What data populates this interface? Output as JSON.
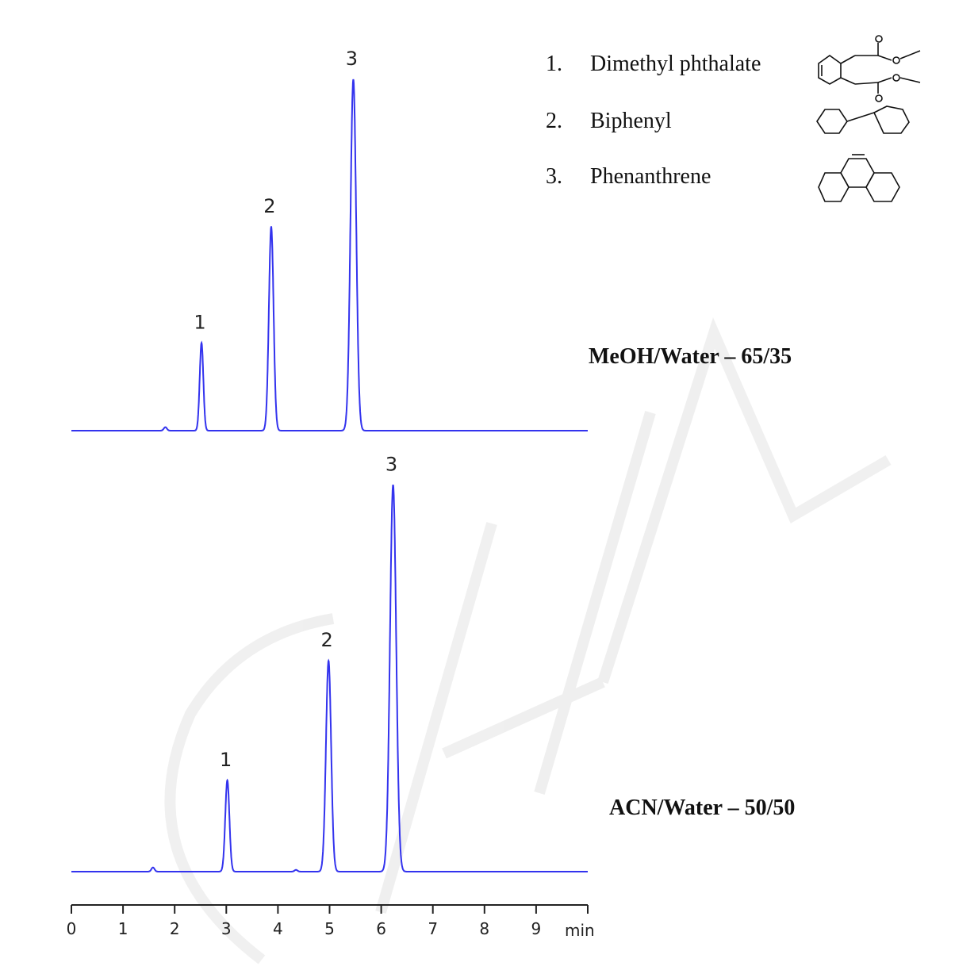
{
  "chart_data": {
    "type": "line",
    "title": "",
    "xlabel": "min",
    "ylabel": "",
    "xlim": [
      0,
      10
    ],
    "x_ticks": [
      "0",
      "1",
      "2",
      "3",
      "4",
      "5",
      "6",
      "7",
      "8",
      "9"
    ],
    "grid": false,
    "trace_color": "#3333ee",
    "legend": [
      {
        "number": "1.",
        "name": "Dimethyl phthalate",
        "structure": "dimethyl-phthalate"
      },
      {
        "number": "2.",
        "name": "Biphenyl",
        "structure": "biphenyl"
      },
      {
        "number": "3.",
        "name": "Phenanthrene",
        "structure": "phenanthrene"
      }
    ],
    "series": [
      {
        "name": "MeOH/Water – 65/35",
        "peaks": [
          {
            "label": "1",
            "retention_time": 2.52,
            "relative_height": 25,
            "width": 0.035
          },
          {
            "label": "2",
            "retention_time": 3.87,
            "relative_height": 58,
            "width": 0.045
          },
          {
            "label": "3",
            "retention_time": 5.46,
            "relative_height": 100,
            "width": 0.055
          }
        ],
        "minor_features": [
          {
            "retention_time": 1.82,
            "relative_height": 1
          }
        ]
      },
      {
        "name": "ACN/Water – 50/50",
        "peaks": [
          {
            "label": "1",
            "retention_time": 3.02,
            "relative_height": 26,
            "width": 0.04
          },
          {
            "label": "2",
            "retention_time": 4.98,
            "relative_height": 60,
            "width": 0.05
          },
          {
            "label": "3",
            "retention_time": 6.23,
            "relative_height": 110,
            "width": 0.06
          }
        ],
        "minor_features": [
          {
            "retention_time": 1.58,
            "relative_height": 1.2
          },
          {
            "retention_time": 4.35,
            "relative_height": 0.5
          }
        ]
      }
    ]
  }
}
